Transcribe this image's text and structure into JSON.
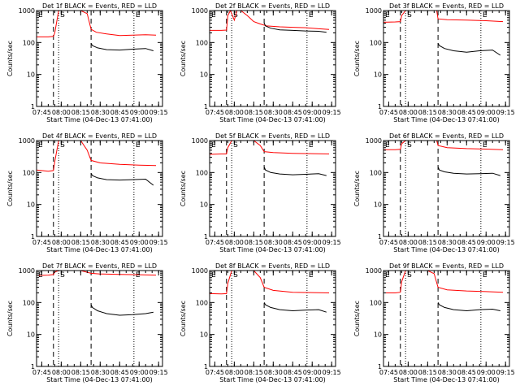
{
  "page": {
    "background": "#ffffff"
  },
  "colors": {
    "events": "#000000",
    "lld": "#ff0000",
    "axis": "#000000"
  },
  "chart_data": [
    {
      "type": "line",
      "title": "Det 1f BLACK = Events, RED = LLD",
      "xlabel": "Start Time (04-Dec-13 07:41:00)",
      "ylabel": "Counts/sec",
      "ylog": true,
      "ylim": [
        1,
        1000
      ],
      "xlim": [
        "07:41",
        "09:18"
      ],
      "xtick_labels": [
        "07:45",
        "08:00",
        "08:15",
        "08:30",
        "08:45",
        "09:00",
        "09:15"
      ],
      "ytick_labels": [
        "1",
        "10",
        "100",
        "1000"
      ],
      "markers": [
        {
          "time": "07:41",
          "style": "dotted",
          "label": "E"
        },
        {
          "time": "07:54",
          "style": "dashed",
          "label": ""
        },
        {
          "time": "07:58",
          "style": "dotted",
          "label": "S"
        },
        {
          "time": "08:23",
          "style": "dashed",
          "label": ""
        },
        {
          "time": "08:56",
          "style": "dotted",
          "label": "E"
        }
      ],
      "series": [
        {
          "name": "LLD",
          "color": "#ff0000",
          "x": [
            "07:41",
            "07:50",
            "07:54",
            "07:55",
            "07:58",
            "08:00",
            "08:05",
            "08:10",
            "08:15",
            "08:20",
            "08:23",
            "08:27",
            "08:35",
            "08:45",
            "08:55",
            "09:05",
            "09:13"
          ],
          "y": [
            150,
            150,
            155,
            200,
            1000,
            1000,
            1000,
            1000,
            1000,
            800,
            260,
            210,
            185,
            165,
            170,
            175,
            170
          ]
        },
        {
          "name": "Events",
          "color": "#000000",
          "x": [
            "08:23",
            "08:24",
            "08:28",
            "08:35",
            "08:45",
            "08:55",
            "09:05",
            "09:11"
          ],
          "y": [
            95,
            80,
            68,
            60,
            58,
            62,
            65,
            55
          ]
        }
      ]
    },
    {
      "type": "line",
      "title": "Det 2f BLACK = Events, RED = LLD",
      "xlabel": "Start Time (04-Dec-13 07:41:00)",
      "ylabel": "Counts/sec",
      "ylog": true,
      "ylim": [
        1,
        1000
      ],
      "xlim": [
        "07:41",
        "09:18"
      ],
      "xtick_labels": [
        "07:45",
        "08:00",
        "08:15",
        "08:30",
        "08:45",
        "09:00",
        "09:15"
      ],
      "ytick_labels": [
        "1",
        "10",
        "100",
        "1000"
      ],
      "markers": [
        {
          "time": "07:41",
          "style": "dotted",
          "label": "E"
        },
        {
          "time": "07:54",
          "style": "dashed",
          "label": ""
        },
        {
          "time": "07:58",
          "style": "dotted",
          "label": "S"
        },
        {
          "time": "08:23",
          "style": "dashed",
          "label": ""
        },
        {
          "time": "08:56",
          "style": "dotted",
          "label": "E"
        }
      ],
      "series": [
        {
          "name": "LLD",
          "color": "#ff0000",
          "x": [
            "07:41",
            "07:50",
            "07:54",
            "07:55",
            "07:57",
            "08:00",
            "08:02",
            "08:05",
            "08:10",
            "08:15",
            "08:20",
            "08:25",
            "08:35",
            "08:45",
            "08:55",
            "09:05",
            "09:13"
          ],
          "y": [
            240,
            240,
            245,
            700,
            1000,
            500,
            1000,
            1000,
            700,
            450,
            380,
            330,
            310,
            300,
            290,
            270,
            255
          ]
        },
        {
          "name": "Events",
          "color": "#000000",
          "x": [
            "08:23",
            "08:24",
            "08:28",
            "08:35",
            "08:45",
            "08:55",
            "09:05",
            "09:11"
          ],
          "y": [
            410,
            330,
            280,
            250,
            240,
            230,
            225,
            210
          ]
        }
      ]
    },
    {
      "type": "line",
      "title": "Det 3f BLACK = Events, RED = LLD",
      "xlabel": "Start Time (04-Dec-13 07:41:00)",
      "ylabel": "Counts/sec",
      "ylog": true,
      "ylim": [
        1,
        1000
      ],
      "xlim": [
        "07:41",
        "09:18"
      ],
      "xtick_labels": [
        "07:45",
        "08:00",
        "08:15",
        "08:30",
        "08:45",
        "09:00",
        "09:15"
      ],
      "ytick_labels": [
        "1",
        "10",
        "100",
        "1000"
      ],
      "markers": [
        {
          "time": "07:41",
          "style": "dotted",
          "label": "E"
        },
        {
          "time": "07:54",
          "style": "dashed",
          "label": ""
        },
        {
          "time": "07:58",
          "style": "dotted",
          "label": "S"
        },
        {
          "time": "08:23",
          "style": "dashed",
          "label": ""
        },
        {
          "time": "08:56",
          "style": "dotted",
          "label": "E"
        }
      ],
      "series": [
        {
          "name": "LLD",
          "color": "#ff0000",
          "x": [
            "07:41",
            "07:50",
            "07:54",
            "07:55",
            "07:58",
            "08:05",
            "08:15",
            "08:22",
            "08:23",
            "08:30",
            "08:45",
            "09:00",
            "09:13"
          ],
          "y": [
            430,
            440,
            450,
            700,
            1000,
            1000,
            1000,
            1000,
            550,
            520,
            500,
            480,
            450
          ]
        },
        {
          "name": "Events",
          "color": "#000000",
          "x": [
            "08:23",
            "08:24",
            "08:28",
            "08:35",
            "08:45",
            "08:55",
            "09:05",
            "09:11"
          ],
          "y": [
            95,
            80,
            65,
            55,
            50,
            55,
            58,
            40
          ]
        }
      ]
    },
    {
      "type": "line",
      "title": "Det 4f BLACK = Events, RED = LLD",
      "xlabel": "Start Time (04-Dec-13 07:41:00)",
      "ylabel": "Counts/sec",
      "ylog": true,
      "ylim": [
        1,
        1000
      ],
      "xlim": [
        "07:41",
        "09:18"
      ],
      "xtick_labels": [
        "07:45",
        "08:00",
        "08:15",
        "08:30",
        "08:45",
        "09:00",
        "09:15"
      ],
      "ytick_labels": [
        "1",
        "10",
        "100",
        "1000"
      ],
      "markers": [
        {
          "time": "07:41",
          "style": "dotted",
          "label": "E"
        },
        {
          "time": "07:54",
          "style": "dashed",
          "label": ""
        },
        {
          "time": "07:58",
          "style": "dotted",
          "label": "S"
        },
        {
          "time": "08:23",
          "style": "dashed",
          "label": ""
        },
        {
          "time": "08:56",
          "style": "dotted",
          "label": "E"
        }
      ],
      "series": [
        {
          "name": "LLD",
          "color": "#ff0000",
          "x": [
            "07:41",
            "07:50",
            "07:54",
            "07:55",
            "07:58",
            "08:05",
            "08:15",
            "08:20",
            "08:23",
            "08:30",
            "08:45",
            "09:00",
            "09:13"
          ],
          "y": [
            120,
            110,
            115,
            220,
            1000,
            1000,
            1000,
            500,
            240,
            200,
            180,
            170,
            165
          ]
        },
        {
          "name": "Events",
          "color": "#000000",
          "x": [
            "08:23",
            "08:24",
            "08:28",
            "08:35",
            "08:45",
            "08:55",
            "09:05",
            "09:11"
          ],
          "y": [
            95,
            80,
            68,
            60,
            58,
            60,
            62,
            40
          ]
        }
      ]
    },
    {
      "type": "line",
      "title": "Det 5f BLACK = Events, RED = LLD",
      "xlabel": "Start Time (04-Dec-13 07:41:00)",
      "ylabel": "Counts/sec",
      "ylog": true,
      "ylim": [
        1,
        1000
      ],
      "xlim": [
        "07:41",
        "09:18"
      ],
      "xtick_labels": [
        "07:45",
        "08:00",
        "08:15",
        "08:30",
        "08:45",
        "09:00",
        "09:15"
      ],
      "ytick_labels": [
        "1",
        "10",
        "100",
        "1000"
      ],
      "markers": [
        {
          "time": "07:41",
          "style": "dotted",
          "label": "E"
        },
        {
          "time": "07:54",
          "style": "dashed",
          "label": ""
        },
        {
          "time": "07:58",
          "style": "dotted",
          "label": "S"
        },
        {
          "time": "08:23",
          "style": "dashed",
          "label": ""
        },
        {
          "time": "08:56",
          "style": "dotted",
          "label": "E"
        }
      ],
      "series": [
        {
          "name": "LLD",
          "color": "#ff0000",
          "x": [
            "07:41",
            "07:50",
            "07:54",
            "07:55",
            "07:58",
            "08:05",
            "08:15",
            "08:20",
            "08:23",
            "08:30",
            "08:45",
            "09:00",
            "09:13"
          ],
          "y": [
            370,
            380,
            380,
            600,
            1000,
            1000,
            1000,
            700,
            450,
            420,
            400,
            390,
            380
          ]
        },
        {
          "name": "Events",
          "color": "#000000",
          "x": [
            "08:23",
            "08:24",
            "08:28",
            "08:35",
            "08:45",
            "08:55",
            "09:05",
            "09:11"
          ],
          "y": [
            150,
            120,
            100,
            90,
            85,
            88,
            92,
            80
          ]
        }
      ]
    },
    {
      "type": "line",
      "title": "Det 6f BLACK = Events, RED = LLD",
      "xlabel": "Start Time (04-Dec-13 07:41:00)",
      "ylabel": "Counts/sec",
      "ylog": true,
      "ylim": [
        1,
        1000
      ],
      "xlim": [
        "07:41",
        "09:18"
      ],
      "xtick_labels": [
        "07:45",
        "08:00",
        "08:15",
        "08:30",
        "08:45",
        "09:00",
        "09:15"
      ],
      "ytick_labels": [
        "1",
        "10",
        "100",
        "1000"
      ],
      "markers": [
        {
          "time": "07:41",
          "style": "dotted",
          "label": "E"
        },
        {
          "time": "07:54",
          "style": "dashed",
          "label": ""
        },
        {
          "time": "07:58",
          "style": "dotted",
          "label": "S"
        },
        {
          "time": "08:23",
          "style": "dashed",
          "label": ""
        },
        {
          "time": "08:56",
          "style": "dotted",
          "label": "E"
        }
      ],
      "series": [
        {
          "name": "LLD",
          "color": "#ff0000",
          "x": [
            "07:41",
            "07:50",
            "07:54",
            "07:55",
            "07:58",
            "08:05",
            "08:15",
            "08:22",
            "08:23",
            "08:30",
            "08:45",
            "09:00",
            "09:13"
          ],
          "y": [
            520,
            520,
            530,
            800,
            1000,
            1000,
            1000,
            1000,
            700,
            600,
            560,
            540,
            520
          ]
        },
        {
          "name": "Events",
          "color": "#000000",
          "x": [
            "08:23",
            "08:24",
            "08:28",
            "08:35",
            "08:45",
            "08:55",
            "09:05",
            "09:11"
          ],
          "y": [
            150,
            120,
            105,
            95,
            90,
            92,
            95,
            80
          ]
        }
      ]
    },
    {
      "type": "line",
      "title": "Det 7f BLACK = Events, RED = LLD",
      "xlabel": "Start Time (04-Dec-13 07:41:00)",
      "ylabel": "Counts/sec",
      "ylog": true,
      "ylim": [
        1,
        1000
      ],
      "xlim": [
        "07:41",
        "09:18"
      ],
      "xtick_labels": [
        "07:45",
        "08:00",
        "08:15",
        "08:30",
        "08:45",
        "09:00",
        "09:15"
      ],
      "ytick_labels": [
        "1",
        "10",
        "100",
        "1000"
      ],
      "markers": [
        {
          "time": "07:41",
          "style": "dotted",
          "label": "E"
        },
        {
          "time": "07:54",
          "style": "dashed",
          "label": ""
        },
        {
          "time": "07:58",
          "style": "dotted",
          "label": "S"
        },
        {
          "time": "08:23",
          "style": "dashed",
          "label": ""
        },
        {
          "time": "08:56",
          "style": "dotted",
          "label": "E"
        }
      ],
      "series": [
        {
          "name": "LLD",
          "color": "#ff0000",
          "x": [
            "07:41",
            "07:50",
            "07:54",
            "07:55",
            "07:58",
            "08:05",
            "08:15",
            "08:23",
            "08:30",
            "08:45",
            "09:00",
            "09:13"
          ],
          "y": [
            700,
            720,
            750,
            900,
            1000,
            1000,
            1000,
            820,
            780,
            760,
            740,
            720
          ]
        },
        {
          "name": "Events",
          "color": "#000000",
          "x": [
            "08:23",
            "08:24",
            "08:28",
            "08:35",
            "08:45",
            "08:55",
            "09:05",
            "09:11"
          ],
          "y": [
            85,
            70,
            55,
            45,
            40,
            42,
            45,
            50
          ]
        }
      ]
    },
    {
      "type": "line",
      "title": "Det 8f BLACK = Events, RED = LLD",
      "xlabel": "Start Time (04-Dec-13 07:41:00)",
      "ylabel": "Counts/sec",
      "ylog": true,
      "ylim": [
        1,
        1000
      ],
      "xlim": [
        "07:41",
        "09:18"
      ],
      "xtick_labels": [
        "07:45",
        "08:00",
        "08:15",
        "08:30",
        "08:45",
        "09:00",
        "09:15"
      ],
      "ytick_labels": [
        "1",
        "10",
        "100",
        "1000"
      ],
      "markers": [
        {
          "time": "07:41",
          "style": "dotted",
          "label": "E"
        },
        {
          "time": "07:54",
          "style": "dashed",
          "label": ""
        },
        {
          "time": "07:58",
          "style": "dotted",
          "label": "S"
        },
        {
          "time": "08:23",
          "style": "dashed",
          "label": ""
        },
        {
          "time": "08:56",
          "style": "dotted",
          "label": "E"
        }
      ],
      "series": [
        {
          "name": "LLD",
          "color": "#ff0000",
          "x": [
            "07:41",
            "07:50",
            "07:54",
            "07:55",
            "07:58",
            "08:05",
            "08:15",
            "08:20",
            "08:23",
            "08:30",
            "08:45",
            "09:00",
            "09:13"
          ],
          "y": [
            190,
            185,
            190,
            400,
            1000,
            1000,
            1000,
            600,
            300,
            240,
            210,
            205,
            200
          ]
        },
        {
          "name": "Events",
          "color": "#000000",
          "x": [
            "08:23",
            "08:24",
            "08:28",
            "08:35",
            "08:45",
            "08:55",
            "09:05",
            "09:11"
          ],
          "y": [
            100,
            85,
            70,
            60,
            55,
            58,
            60,
            50
          ]
        }
      ]
    },
    {
      "type": "line",
      "title": "Det 9f BLACK = Events, RED = LLD",
      "xlabel": "Start Time (04-Dec-13 07:41:00)",
      "ylabel": "Counts/sec",
      "ylog": true,
      "ylim": [
        1,
        1000
      ],
      "xlim": [
        "07:41",
        "09:18"
      ],
      "xtick_labels": [
        "07:45",
        "08:00",
        "08:15",
        "08:30",
        "08:45",
        "09:00",
        "09:15"
      ],
      "ytick_labels": [
        "1",
        "10",
        "100",
        "1000"
      ],
      "markers": [
        {
          "time": "07:41",
          "style": "dotted",
          "label": "E"
        },
        {
          "time": "07:54",
          "style": "dashed",
          "label": ""
        },
        {
          "time": "07:58",
          "style": "dotted",
          "label": "S"
        },
        {
          "time": "08:23",
          "style": "dashed",
          "label": ""
        },
        {
          "time": "08:56",
          "style": "dotted",
          "label": "E"
        }
      ],
      "series": [
        {
          "name": "LLD",
          "color": "#ff0000",
          "x": [
            "07:41",
            "07:50",
            "07:54",
            "07:55",
            "07:58",
            "08:05",
            "08:15",
            "08:20",
            "08:23",
            "08:30",
            "08:45",
            "09:00",
            "09:13"
          ],
          "y": [
            200,
            200,
            210,
            450,
            1000,
            1000,
            1000,
            800,
            300,
            250,
            230,
            220,
            210
          ]
        },
        {
          "name": "Events",
          "color": "#000000",
          "x": [
            "08:23",
            "08:24",
            "08:28",
            "08:35",
            "08:45",
            "08:55",
            "09:05",
            "09:11"
          ],
          "y": [
            100,
            85,
            70,
            60,
            55,
            60,
            62,
            55
          ]
        }
      ]
    }
  ]
}
